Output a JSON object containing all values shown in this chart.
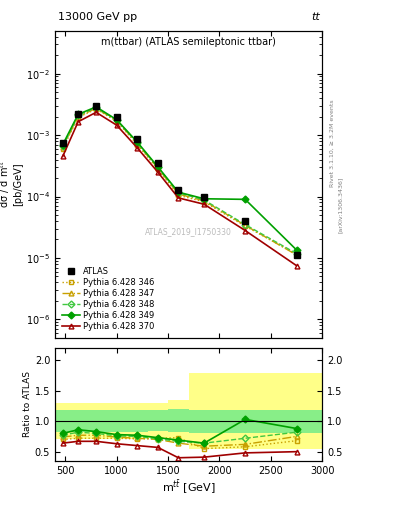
{
  "title_top": "13000 GeV pp",
  "title_top_right": "tt",
  "plot_title": "m(ttbar) (ATLAS semileptonic ttbar)",
  "watermark": "ATLAS_2019_I1750330",
  "rivet_label": "Rivet 3.1.10, ≥ 3.2M events",
  "arxiv_label": "[arXiv:1306.3436]",
  "xlabel": "m$^{t\\bar{t}}$ [GeV]",
  "ylabel": "dσ / d m$^{t\\bar{t}}$\n[pb/GeV]",
  "ylabel_ratio": "Ratio to ATLAS",
  "x_bins": [
    400,
    550,
    700,
    900,
    1100,
    1300,
    1500,
    1700,
    2000,
    2500,
    3000
  ],
  "x_centers": [
    475,
    625,
    800,
    1000,
    1200,
    1400,
    1600,
    1850,
    2250,
    2750
  ],
  "atlas_data": [
    0.00075,
    0.0022,
    0.003,
    0.002,
    0.00085,
    0.00035,
    0.00013,
    0.0001,
    4e-05,
    1.1e-05
  ],
  "py346": [
    0.0006,
    0.00195,
    0.00265,
    0.00168,
    0.0007,
    0.00028,
    0.000105,
    8.2e-05,
    3.3e-05,
    1.15e-05
  ],
  "py347": [
    0.00063,
    0.002,
    0.00272,
    0.00172,
    0.00073,
    0.00029,
    0.00011,
    8.5e-05,
    3.4e-05,
    1.12e-05
  ],
  "py348": [
    0.00066,
    0.0021,
    0.0028,
    0.00175,
    0.00075,
    0.0003,
    0.000115,
    8.8e-05,
    3.5e-05,
    1.18e-05
  ],
  "py349": [
    0.0007,
    0.00218,
    0.00288,
    0.00178,
    0.00077,
    0.000305,
    0.000118,
    9.2e-05,
    9e-05,
    1.35e-05
  ],
  "py370": [
    0.00045,
    0.00165,
    0.00235,
    0.00145,
    0.00062,
    0.00025,
    9.5e-05,
    7.5e-05,
    2.8e-05,
    7.5e-06
  ],
  "ratio_346": [
    0.7,
    0.72,
    0.72,
    0.72,
    0.71,
    0.72,
    0.73,
    0.55,
    0.58,
    0.68
  ],
  "ratio_347": [
    0.74,
    0.77,
    0.77,
    0.74,
    0.72,
    0.7,
    0.64,
    0.59,
    0.62,
    0.75
  ],
  "ratio_348": [
    0.77,
    0.82,
    0.8,
    0.76,
    0.75,
    0.71,
    0.67,
    0.64,
    0.72,
    0.82
  ],
  "ratio_349": [
    0.8,
    0.86,
    0.83,
    0.78,
    0.77,
    0.73,
    0.69,
    0.64,
    1.03,
    0.88
  ],
  "ratio_370": [
    0.64,
    0.67,
    0.67,
    0.63,
    0.6,
    0.57,
    0.4,
    0.41,
    0.48,
    0.5
  ],
  "band_yellow_lo": [
    0.7,
    0.7,
    0.7,
    0.7,
    0.7,
    0.72,
    0.68,
    0.55,
    0.55,
    0.55
  ],
  "band_yellow_hi": [
    1.3,
    1.3,
    1.3,
    1.3,
    1.3,
    1.3,
    1.35,
    1.8,
    1.8,
    1.8
  ],
  "band_green_lo": [
    0.82,
    0.82,
    0.82,
    0.82,
    0.82,
    0.84,
    0.82,
    0.8,
    0.8,
    0.8
  ],
  "band_green_hi": [
    1.18,
    1.18,
    1.18,
    1.18,
    1.18,
    1.18,
    1.2,
    1.18,
    1.18,
    1.18
  ],
  "color_346": "#c8a000",
  "color_347": "#c8a000",
  "color_348": "#40c840",
  "color_349": "#00a000",
  "color_370": "#a00000",
  "ylim_main": [
    5e-07,
    0.05
  ],
  "ylim_ratio": [
    0.35,
    2.2
  ],
  "yticks_ratio": [
    0.5,
    1.0,
    1.5,
    2.0
  ],
  "xticks": [
    500,
    1000,
    1500,
    2000,
    2500,
    3000
  ]
}
